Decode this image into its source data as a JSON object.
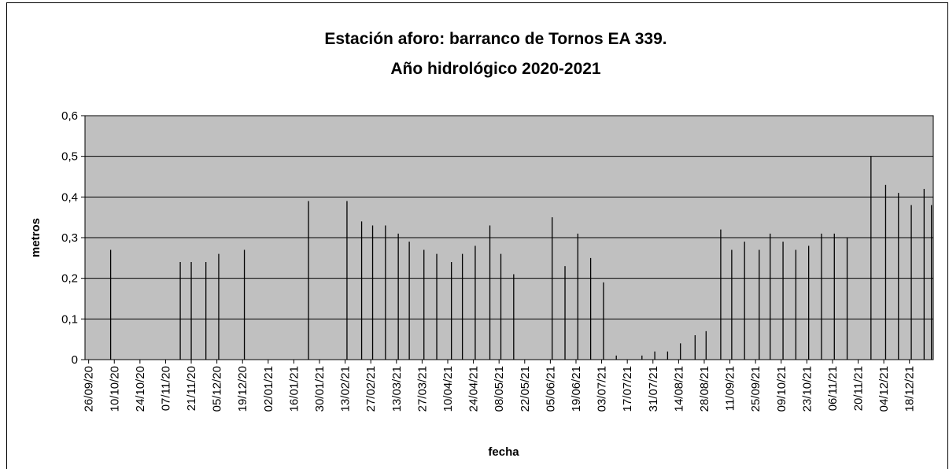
{
  "chart_data": {
    "type": "needle",
    "title": [
      "Estación aforo: barranco de Tornos EA 339.",
      "Año hidrológico 2020-2021"
    ],
    "xlabel": "fecha",
    "ylabel": "metros",
    "x": [
      "08/10/20",
      "15/11/20",
      "21/11/20",
      "29/11/20",
      "06/12/20",
      "20/12/20",
      "24/01/21",
      "14/02/21",
      "22/02/21",
      "28/02/21",
      "07/03/21",
      "14/03/21",
      "20/03/21",
      "28/03/21",
      "04/04/21",
      "12/04/21",
      "18/04/21",
      "25/04/21",
      "03/05/21",
      "09/05/21",
      "16/05/21",
      "06/06/21",
      "13/06/21",
      "20/06/21",
      "27/06/21",
      "04/07/21",
      "11/07/21",
      "25/07/21",
      "01/08/21",
      "08/08/21",
      "15/08/21",
      "23/08/21",
      "29/08/21",
      "06/09/21",
      "12/09/21",
      "19/09/21",
      "27/09/21",
      "03/10/21",
      "10/10/21",
      "17/10/21",
      "24/10/21",
      "31/10/21",
      "07/11/21",
      "14/11/21",
      "27/11/21",
      "05/12/21",
      "12/12/21",
      "19/12/21",
      "26/12/21",
      "30/12/21"
    ],
    "values": [
      0.27,
      0.24,
      0.24,
      0.24,
      0.26,
      0.27,
      0.39,
      0.39,
      0.34,
      0.33,
      0.33,
      0.31,
      0.29,
      0.27,
      0.26,
      0.24,
      0.26,
      0.28,
      0.33,
      0.26,
      0.21,
      0.35,
      0.23,
      0.31,
      0.25,
      0.19,
      0.01,
      0.01,
      0.02,
      0.02,
      0.04,
      0.06,
      0.07,
      0.32,
      0.27,
      0.29,
      0.27,
      0.31,
      0.29,
      0.27,
      0.28,
      0.31,
      0.31,
      0.3,
      0.5,
      0.43,
      0.41,
      0.38,
      0.42,
      0.38
    ],
    "color": "#000000",
    "xlim": [
      "24/09/20",
      "31/12/21"
    ],
    "xticks": [
      "26/09/20",
      "10/10/20",
      "24/10/20",
      "07/11/20",
      "21/11/20",
      "05/12/20",
      "19/12/20",
      "02/01/21",
      "16/01/21",
      "30/01/21",
      "13/02/21",
      "27/02/21",
      "13/03/21",
      "27/03/21",
      "10/04/21",
      "24/04/21",
      "08/05/21",
      "22/05/21",
      "05/06/21",
      "19/06/21",
      "03/07/21",
      "17/07/21",
      "31/07/21",
      "14/08/21",
      "28/08/21",
      "11/09/21",
      "25/09/21",
      "09/10/21",
      "23/10/21",
      "06/11/21",
      "20/11/21",
      "04/12/21",
      "18/12/21"
    ],
    "ylim": [
      0,
      0.6
    ],
    "yticks": [
      0,
      {
        "value": 0.1,
        "label": "0,1"
      },
      {
        "value": 0.2,
        "label": "0,2"
      },
      {
        "value": 0.3,
        "label": "0,3"
      },
      {
        "value": 0.4,
        "label": "0,4"
      },
      {
        "value": 0.5,
        "label": "0,5"
      },
      {
        "value": 0.6,
        "label": "0,6"
      }
    ],
    "grid": true,
    "plot_background": "#c0c0c0"
  }
}
